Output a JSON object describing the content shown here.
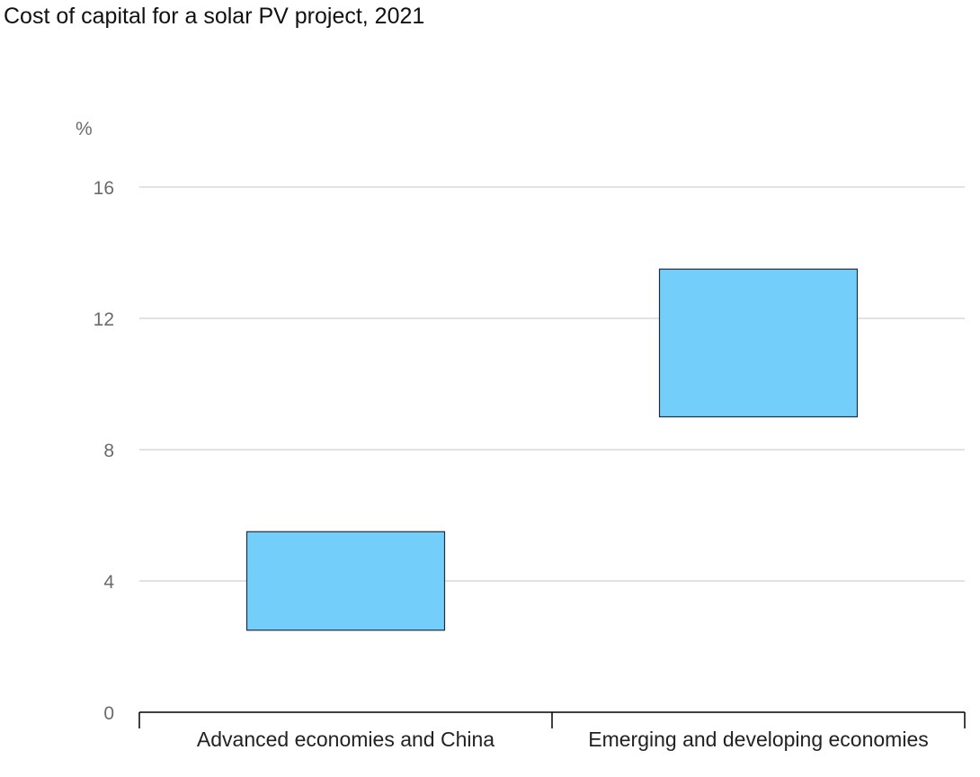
{
  "chart_data": {
    "type": "bar",
    "subtype": "floating-range",
    "title": "Cost of capital for a solar PV project, 2021",
    "ylabel": "%",
    "xlabel": "",
    "ylim": [
      0,
      16
    ],
    "yticks": [
      0,
      4,
      8,
      12,
      16
    ],
    "grid": true,
    "categories": [
      "Advanced economies and China",
      "Emerging and developing economies"
    ],
    "series": [
      {
        "ranges": [
          [
            2.5,
            5.5
          ],
          [
            9.0,
            13.5
          ]
        ]
      }
    ],
    "colors": {
      "bar_fill": "#73cefa",
      "bar_stroke": "#1f2d3d",
      "grid": "#d9d9d9",
      "axis": "#000000"
    }
  }
}
